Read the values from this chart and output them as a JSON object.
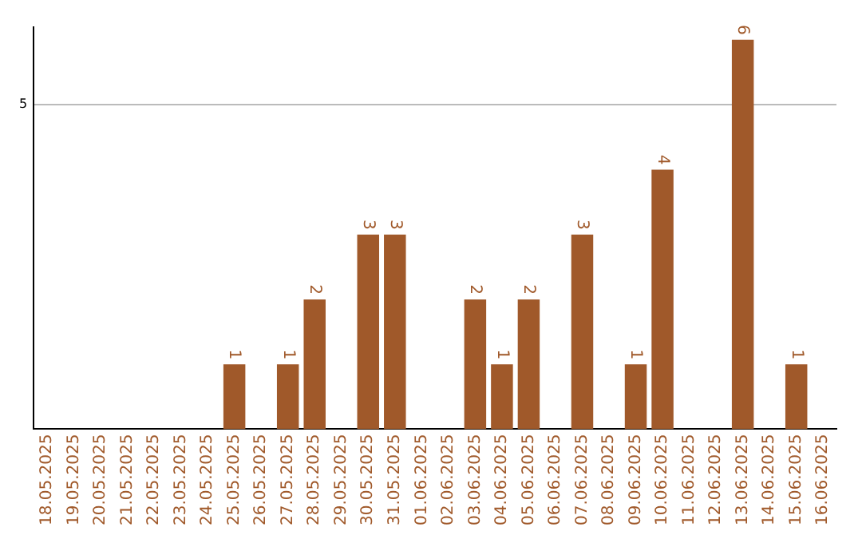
{
  "chart_data": {
    "type": "bar",
    "categories": [
      "18.05.2025",
      "19.05.2025",
      "20.05.2025",
      "21.05.2025",
      "22.05.2025",
      "23.05.2025",
      "24.05.2025",
      "25.05.2025",
      "26.05.2025",
      "27.05.2025",
      "28.05.2025",
      "29.05.2025",
      "30.05.2025",
      "31.05.2025",
      "01.06.2025",
      "02.06.2025",
      "03.06.2025",
      "04.06.2025",
      "05.06.2025",
      "06.06.2025",
      "07.06.2025",
      "08.06.2025",
      "09.06.2025",
      "10.06.2025",
      "11.06.2025",
      "12.06.2025",
      "13.06.2025",
      "14.06.2025",
      "15.06.2025",
      "16.06.2025"
    ],
    "values": [
      null,
      null,
      null,
      null,
      null,
      null,
      null,
      1,
      null,
      1,
      2,
      null,
      3,
      3,
      null,
      null,
      2,
      1,
      2,
      null,
      3,
      null,
      1,
      4,
      null,
      null,
      6,
      null,
      1,
      null
    ],
    "color": "#a0592a",
    "ylim": [
      0,
      6.2
    ],
    "yticks": [
      5
    ],
    "grid": "y",
    "data_labels": true,
    "legend": false
  }
}
